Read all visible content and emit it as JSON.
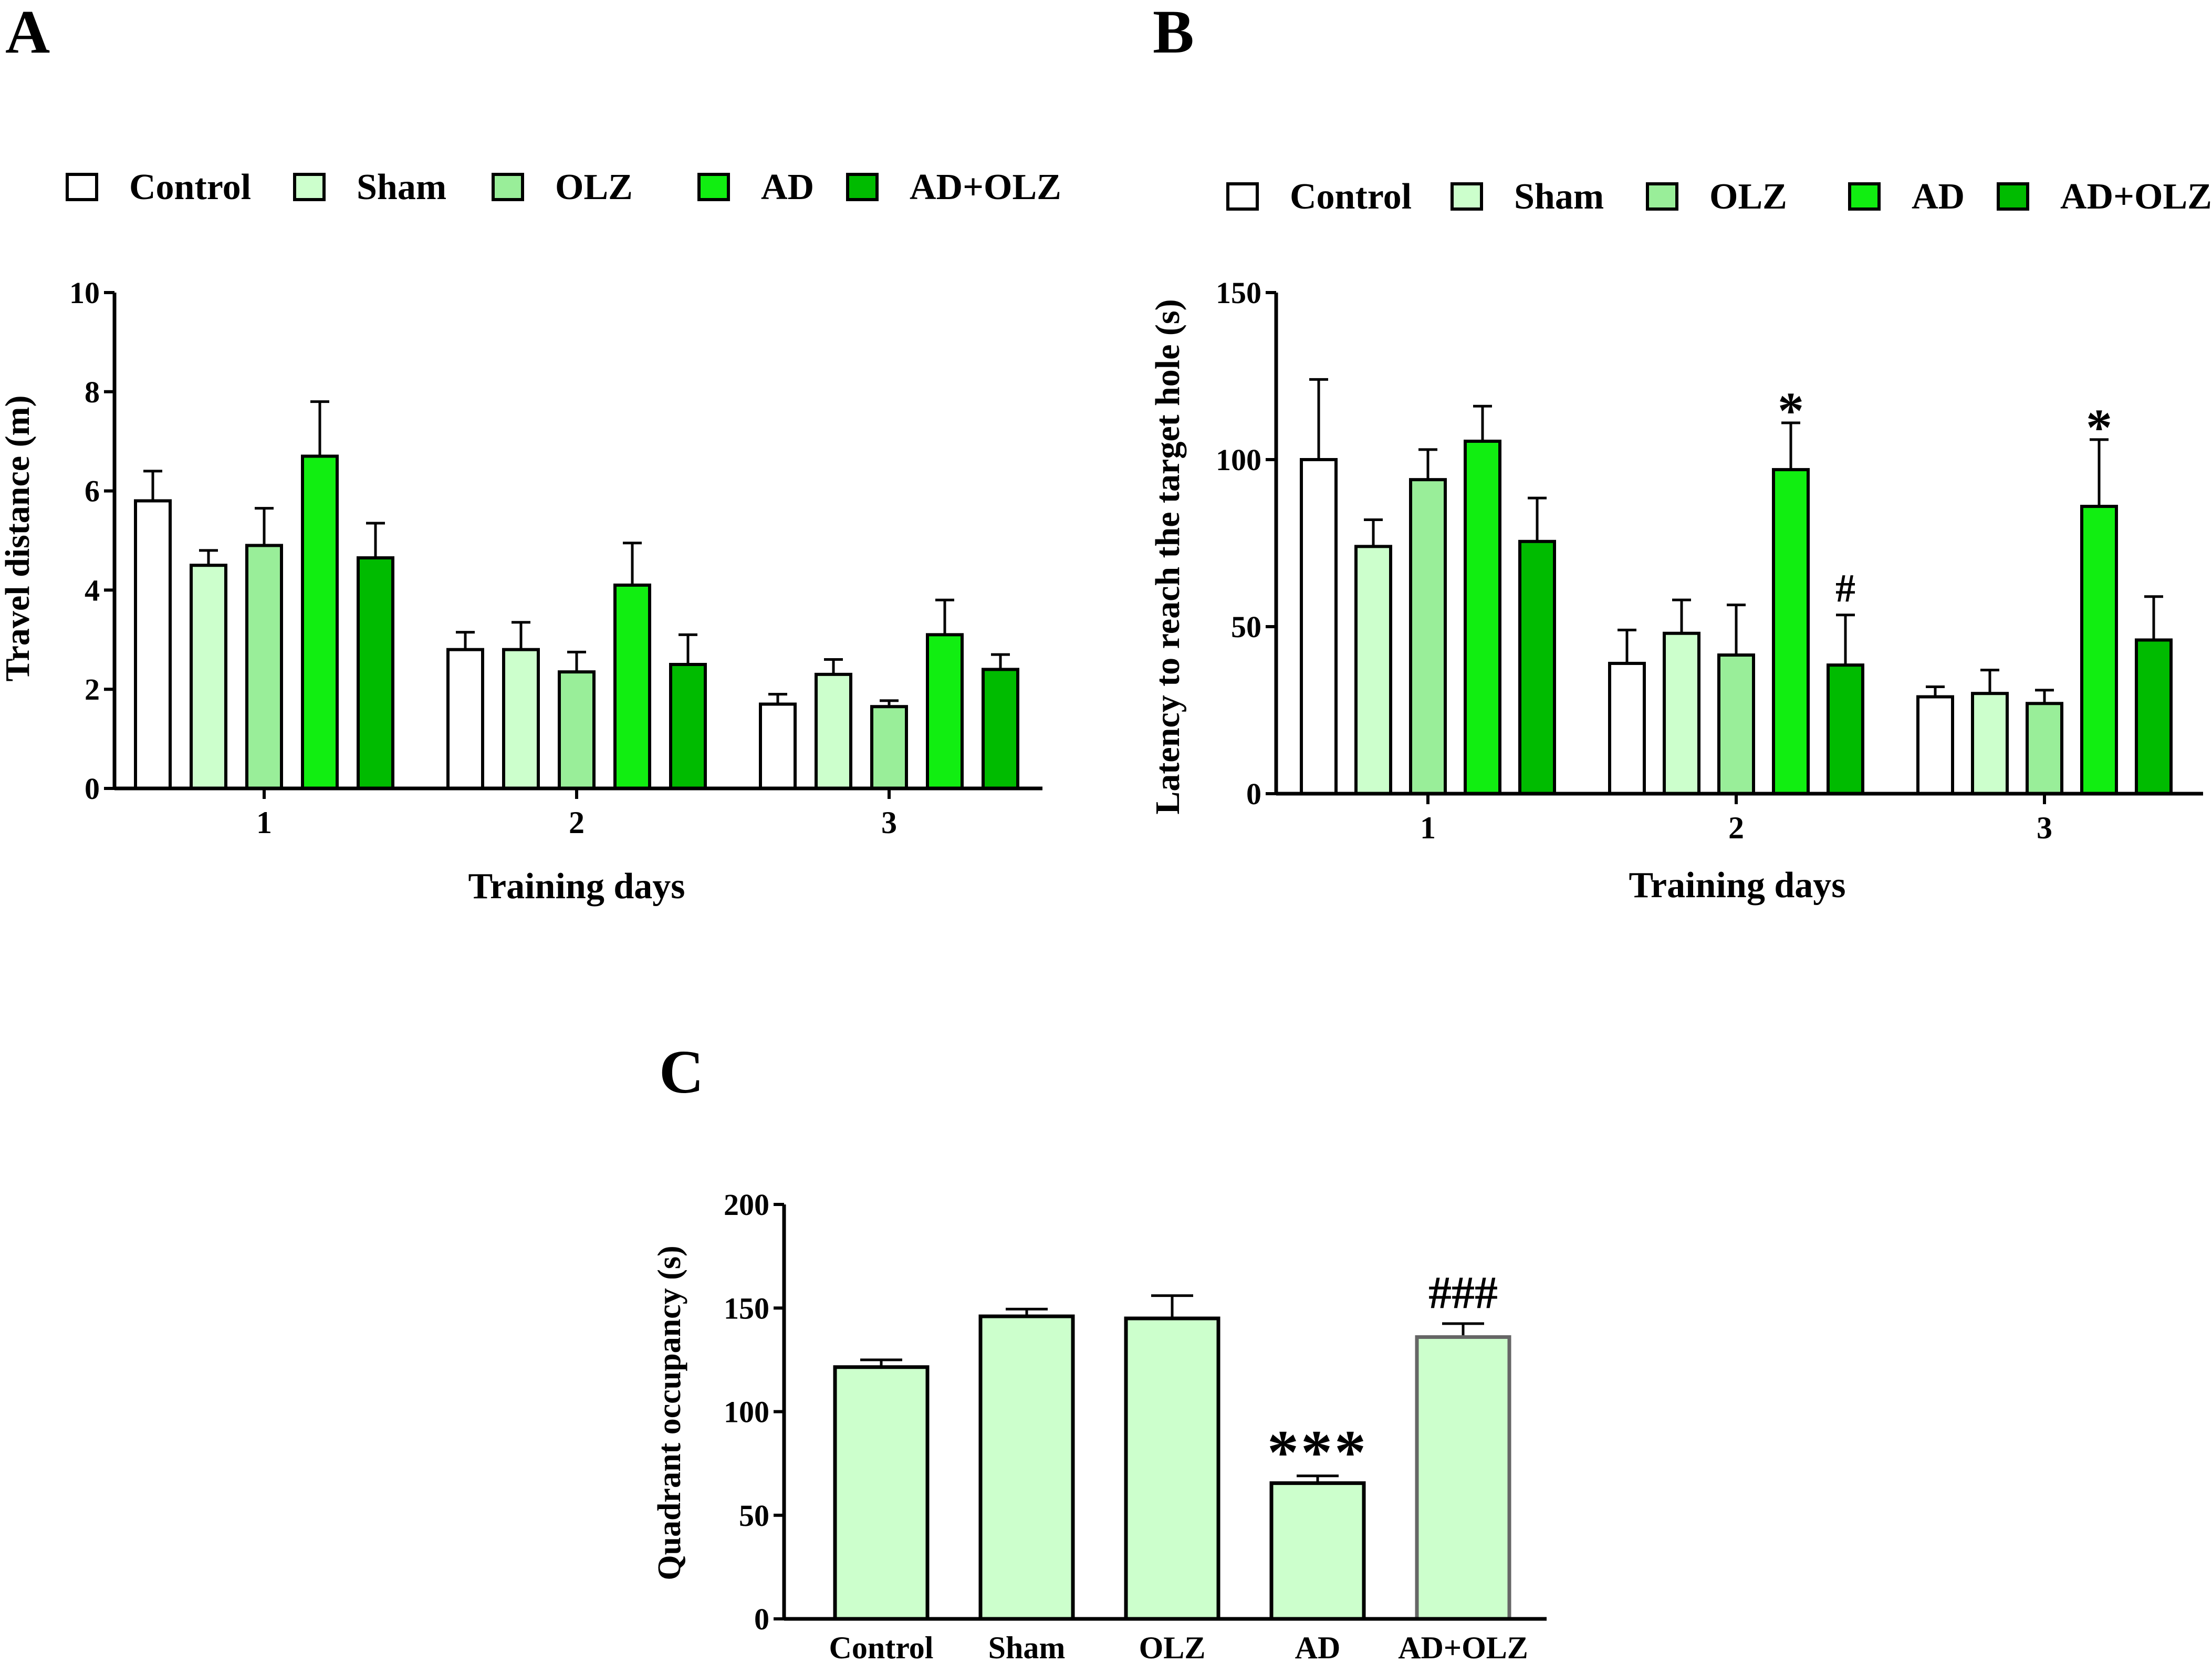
{
  "figure": {
    "panel_labels": [
      "A",
      "B",
      "C"
    ]
  },
  "colors": {
    "Control": "#ffffff",
    "Sham": "#ccffcc",
    "OLZ": "#99ee99",
    "AD": "#11ee11",
    "AD+OLZ": "#00bb00",
    "panelC_bar": "#ccffcc",
    "axis": "#000000"
  },
  "chart_data": [
    {
      "panel": "A",
      "type": "bar",
      "title": "",
      "xlabel": "Training days",
      "ylabel": "Travel distance (m)",
      "categories": [
        "1",
        "2",
        "3"
      ],
      "ylim": [
        0,
        10
      ],
      "yticks": [
        "0",
        "2",
        "4",
        "6",
        "8",
        "10"
      ],
      "legend": [
        "Control",
        "Sham",
        "OLZ",
        "AD",
        "AD+OLZ"
      ],
      "legend_position": "top",
      "series": [
        {
          "name": "Control",
          "values": [
            5.8,
            2.8,
            1.7
          ],
          "errors": [
            0.6,
            0.35,
            0.2
          ]
        },
        {
          "name": "Sham",
          "values": [
            4.5,
            2.8,
            2.3
          ],
          "errors": [
            0.3,
            0.55,
            0.3
          ]
        },
        {
          "name": "OLZ",
          "values": [
            4.9,
            2.35,
            1.65
          ],
          "errors": [
            0.75,
            0.4,
            0.12
          ]
        },
        {
          "name": "AD",
          "values": [
            6.7,
            4.1,
            3.1
          ],
          "errors": [
            1.1,
            0.85,
            0.7
          ]
        },
        {
          "name": "AD+OLZ",
          "values": [
            4.65,
            2.5,
            2.4
          ],
          "errors": [
            0.7,
            0.6,
            0.3
          ]
        }
      ],
      "annotations": []
    },
    {
      "panel": "B",
      "type": "bar",
      "title": "",
      "xlabel": "Training days",
      "ylabel": "Latency to reach the target hole (s)",
      "categories": [
        "1",
        "2",
        "3"
      ],
      "ylim": [
        0,
        150
      ],
      "yticks": [
        "0",
        "50",
        "100",
        "150"
      ],
      "legend": [
        "Control",
        "Sham",
        "OLZ",
        "AD",
        "AD+OLZ"
      ],
      "legend_position": "top",
      "series": [
        {
          "name": "Control",
          "values": [
            100,
            39,
            29
          ],
          "errors": [
            24,
            10,
            3
          ]
        },
        {
          "name": "Sham",
          "values": [
            74,
            48,
            30
          ],
          "errors": [
            8,
            10,
            7
          ]
        },
        {
          "name": "OLZ",
          "values": [
            94,
            41.5,
            27
          ],
          "errors": [
            9,
            15,
            4
          ]
        },
        {
          "name": "AD",
          "values": [
            105.5,
            97,
            86
          ],
          "errors": [
            10.5,
            14,
            20
          ]
        },
        {
          "name": "AD+OLZ",
          "values": [
            75.5,
            38.5,
            46
          ],
          "errors": [
            13,
            15,
            13
          ]
        }
      ],
      "annotations": [
        {
          "text": "*",
          "category": "2",
          "series": "AD"
        },
        {
          "text": "#",
          "category": "2",
          "series": "AD+OLZ"
        },
        {
          "text": "*",
          "category": "3",
          "series": "AD"
        }
      ]
    },
    {
      "panel": "C",
      "type": "bar",
      "title": "",
      "xlabel": "",
      "ylabel": "Quadrant occupancy (s)",
      "categories": [
        "Control",
        "Sham",
        "OLZ",
        "AD",
        "AD+OLZ"
      ],
      "ylim": [
        0,
        200
      ],
      "yticks": [
        "0",
        "50",
        "100",
        "150",
        "200"
      ],
      "values": [
        121.5,
        146,
        145,
        65.5,
        136
      ],
      "errors": [
        3.5,
        3.5,
        11,
        3.5,
        6.5
      ],
      "annotations": [
        {
          "text": "***",
          "category": "AD"
        },
        {
          "text": "###",
          "category": "AD+OLZ"
        }
      ]
    }
  ]
}
